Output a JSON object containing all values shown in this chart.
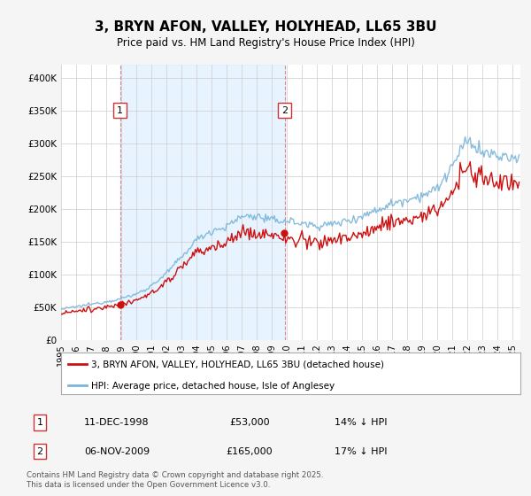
{
  "title": "3, BRYN AFON, VALLEY, HOLYHEAD, LL65 3BU",
  "subtitle": "Price paid vs. HM Land Registry's House Price Index (HPI)",
  "ylim": [
    0,
    420000
  ],
  "background_color": "#f5f5f5",
  "plot_bg_color": "#ffffff",
  "hpi_color": "#7ab5d8",
  "price_color": "#cc1111",
  "shade_color": "#ddeeff",
  "grid_color": "#cccccc",
  "vline_color": "#dd8888",
  "legend_label_price": "3, BRYN AFON, VALLEY, HOLYHEAD, LL65 3BU (detached house)",
  "legend_label_hpi": "HPI: Average price, detached house, Isle of Anglesey",
  "transaction1_date": "11-DEC-1998",
  "transaction1_price": 53000,
  "transaction1_year": 1998.92,
  "transaction1_pct": "14% ↓ HPI",
  "transaction2_date": "06-NOV-2009",
  "transaction2_price": 165000,
  "transaction2_year": 2009.84,
  "transaction2_pct": "17% ↓ HPI",
  "footer": "Contains HM Land Registry data © Crown copyright and database right 2025.\nThis data is licensed under the Open Government Licence v3.0.",
  "yticks": [
    0,
    50000,
    100000,
    150000,
    200000,
    250000,
    300000,
    350000,
    400000
  ],
  "ytick_labels": [
    "£0",
    "£50K",
    "£100K",
    "£150K",
    "£200K",
    "£250K",
    "£300K",
    "£350K",
    "£400K"
  ],
  "hpi_yearly": {
    "1995": 48000,
    "1996": 52000,
    "1997": 56000,
    "1998": 60000,
    "1999": 65000,
    "2000": 72000,
    "2001": 85000,
    "2002": 105000,
    "2003": 130000,
    "2004": 158000,
    "2005": 172000,
    "2006": 178000,
    "2007": 195000,
    "2008": 195000,
    "2009": 188000,
    "2010": 188000,
    "2011": 183000,
    "2012": 180000,
    "2013": 182000,
    "2014": 188000,
    "2015": 195000,
    "2016": 205000,
    "2017": 215000,
    "2018": 222000,
    "2019": 228000,
    "2020": 238000,
    "2021": 275000,
    "2022": 315000,
    "2023": 295000,
    "2024": 290000,
    "2025": 285000
  }
}
